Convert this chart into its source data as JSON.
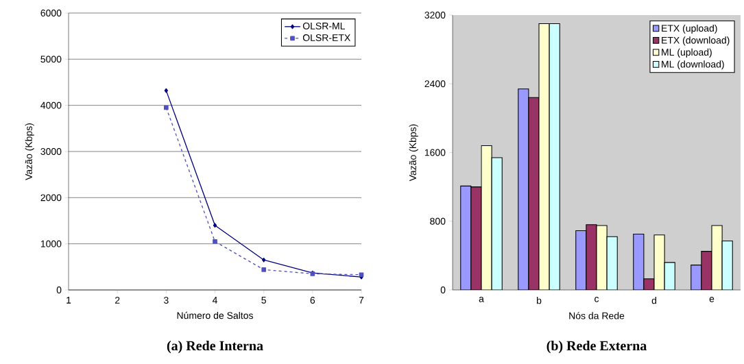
{
  "chart_data": [
    {
      "type": "line",
      "title": "(a) Rede Interna",
      "xlabel": "Número de Saltos",
      "ylabel": "Vazão (Kbps)",
      "x": [
        3,
        4,
        5,
        6,
        7
      ],
      "series": [
        {
          "name": "OLSR-ML",
          "color": "#000080",
          "values": [
            4320,
            1400,
            650,
            370,
            280
          ],
          "marker": "diamond",
          "line_style": "solid"
        },
        {
          "name": "OLSR-ETX",
          "color": "#5050c0",
          "values": [
            3950,
            1050,
            440,
            350,
            330
          ],
          "marker": "square",
          "line_style": "dashed"
        }
      ],
      "xlim": [
        1,
        7
      ],
      "xticks": [
        1,
        2,
        3,
        4,
        5,
        6,
        7
      ],
      "ylim": [
        0,
        6000
      ],
      "yticks": [
        0,
        1000,
        2000,
        3000,
        4000,
        5000,
        6000
      ],
      "grid": "y",
      "legend": "top right"
    },
    {
      "type": "bar",
      "title": "(b) Rede Externa",
      "xlabel": "Nós da Rede",
      "ylabel": "Vazão (Kbps)",
      "categories": [
        "a",
        "b",
        "c",
        "d",
        "e"
      ],
      "series": [
        {
          "name": "ETX (upload)",
          "color": "#9999ff",
          "values": [
            1210,
            2340,
            690,
            650,
            290
          ]
        },
        {
          "name": "ETX (download)",
          "color": "#993366",
          "values": [
            1200,
            2240,
            760,
            130,
            450
          ]
        },
        {
          "name": "ML (upload)",
          "color": "#ffffcc",
          "values": [
            1680,
            3100,
            750,
            640,
            750
          ]
        },
        {
          "name": "ML (download)",
          "color": "#ccffff",
          "values": [
            1540,
            3100,
            620,
            320,
            570
          ]
        }
      ],
      "ylim": [
        0,
        3200
      ],
      "yticks": [
        0,
        800,
        1600,
        2400,
        3200
      ],
      "grid": false,
      "legend": "top right"
    }
  ]
}
